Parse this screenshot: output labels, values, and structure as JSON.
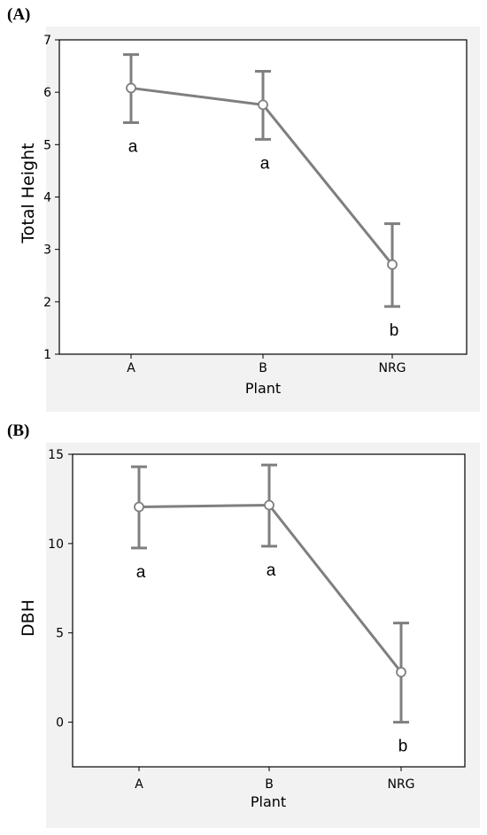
{
  "chart_data": [
    {
      "panel": "(A)",
      "type": "line",
      "categories": [
        "A",
        "B",
        "NRG"
      ],
      "values": [
        6.08,
        5.76,
        2.71
      ],
      "error_low": [
        5.42,
        5.1,
        1.91
      ],
      "error_high": [
        6.72,
        6.4,
        3.49
      ],
      "sig_letters": [
        "a",
        "a",
        "b"
      ],
      "xlabel": "Plant",
      "ylabel": "Total Height",
      "ylim": [
        1,
        7
      ],
      "yticks": [
        1,
        2,
        3,
        4,
        5,
        6,
        7
      ],
      "color": "#7f7f7f"
    },
    {
      "panel": "(B)",
      "type": "line",
      "categories": [
        "A",
        "B",
        "NRG"
      ],
      "values": [
        12.05,
        12.15,
        2.8
      ],
      "error_low": [
        9.75,
        9.85,
        0.0
      ],
      "error_high": [
        14.3,
        14.4,
        5.55
      ],
      "sig_letters": [
        "a",
        "a",
        "b"
      ],
      "xlabel": "Plant",
      "ylabel": "DBH",
      "ylim": [
        -2.5,
        15
      ],
      "yticks": [
        0,
        5,
        10,
        15
      ],
      "color": "#7f7f7f"
    }
  ]
}
